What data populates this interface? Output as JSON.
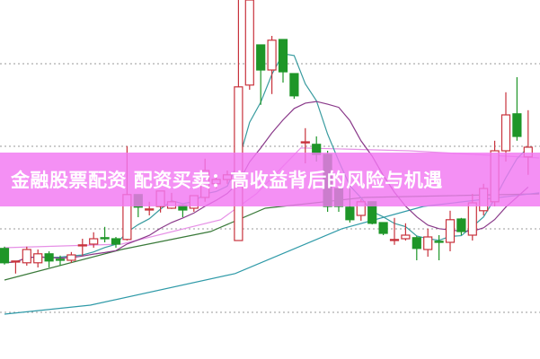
{
  "banner": {
    "title": "金融股票配资 配资买卖：高收益背后的风险与机遇"
  },
  "chart_data": {
    "type": "candlestick",
    "title": "",
    "xlabel": "",
    "ylabel": "",
    "ylim": [
      0,
      100
    ],
    "grid": {
      "horizontal": true,
      "style": "dotted",
      "levels": [
        82.25,
        59.25,
        36.25,
        13
      ]
    },
    "colors": {
      "up": "#c8323c",
      "down": "#1e9628",
      "ma_short": "#3a9ca0",
      "ma_mid": "#8a3a8a",
      "ma_pink": "#e690e6",
      "ma_green": "#3a7a3a",
      "ma_long": "#2f9aa8",
      "banner": "#f278f2"
    },
    "candles": [
      [
        30.8,
        31.3,
        26.3,
        26.8
      ],
      [
        27.2,
        27.3,
        23.8,
        27.3
      ],
      [
        26.8,
        31.3,
        26,
        30.5
      ],
      [
        26.8,
        30.5,
        25.5,
        29.3
      ],
      [
        29.3,
        30,
        25.5,
        27.3
      ],
      [
        27.8,
        28.8,
        26,
        27.5
      ],
      [
        27.5,
        29.8,
        26.8,
        29
      ],
      [
        31.5,
        33.5,
        28.8,
        31.8
      ],
      [
        32,
        35.3,
        31,
        33.5
      ],
      [
        33.8,
        36.8,
        32.5,
        33.5
      ],
      [
        33.5,
        34,
        31,
        32
      ],
      [
        33.3,
        59.3,
        33,
        45.8
      ],
      [
        45.8,
        45.8,
        39.5,
        42.3
      ],
      [
        41.5,
        43.8,
        40,
        41.8
      ],
      [
        42.5,
        46.8,
        40.8,
        46.8
      ],
      [
        42,
        46.3,
        41.8,
        43.8
      ],
      [
        42.8,
        43,
        39.5,
        41.5
      ],
      [
        42,
        45.5,
        41,
        45.5
      ],
      [
        45,
        55.8,
        43.8,
        52.5
      ],
      [
        48.8,
        51.3,
        47.5,
        50
      ],
      [
        50,
        52.5,
        48.8,
        51.3
      ],
      [
        33,
        100,
        33,
        75.8
      ],
      [
        76.3,
        100,
        75,
        100
      ],
      [
        87.5,
        87.5,
        70.8,
        80.5
      ],
      [
        80.5,
        90,
        73.8,
        88.8
      ],
      [
        89,
        89,
        77,
        80
      ],
      [
        79.5,
        79.5,
        72.5,
        73.3
      ],
      [
        60.5,
        64.3,
        54.5,
        60.5
      ],
      [
        59.8,
        62,
        55,
        57
      ],
      [
        57,
        58,
        41,
        42.5
      ],
      [
        47.5,
        47.5,
        41,
        42.5
      ],
      [
        42.3,
        47.5,
        38,
        38.8
      ],
      [
        40,
        44.5,
        38.5,
        43.8
      ],
      [
        43.8,
        43.8,
        37.5,
        37.8
      ],
      [
        38,
        38,
        34.5,
        35
      ],
      [
        33.3,
        39.3,
        31.8,
        33.3
      ],
      [
        33.5,
        37.8,
        33,
        34.5
      ],
      [
        33.8,
        34.3,
        27.5,
        30.8
      ],
      [
        30.5,
        36.3,
        28.5,
        34
      ],
      [
        32.8,
        34.5,
        27.5,
        32.6
      ],
      [
        32.5,
        41.3,
        30,
        38.8
      ],
      [
        39,
        39.3,
        34.5,
        35.5
      ],
      [
        34.5,
        46,
        33,
        43.5
      ],
      [
        41.3,
        48.8,
        40,
        47.5
      ],
      [
        43.8,
        60.8,
        42.5,
        58
      ],
      [
        58,
        74.3,
        55,
        68
      ],
      [
        68.3,
        78.5,
        60.8,
        62
      ],
      [
        56.3,
        69.3,
        51.3,
        59
      ]
    ],
    "candle_format": [
      "open",
      "high",
      "low",
      "close"
    ],
    "overlay_lines": [
      {
        "key": "ma_pink",
        "points": [
          [
            0,
            31
          ],
          [
            10.5,
            32
          ],
          [
            19.4,
            38.8
          ],
          [
            22.6,
            46
          ],
          [
            26.6,
            58.8
          ],
          [
            36.3,
            58
          ],
          [
            48,
            56
          ]
        ]
      },
      {
        "key": "ma_green",
        "points": [
          [
            0,
            22
          ],
          [
            10.5,
            30.5
          ],
          [
            18.5,
            35.5
          ],
          [
            23.4,
            42
          ],
          [
            32.3,
            45
          ],
          [
            48,
            46
          ]
        ]
      },
      {
        "key": "ma_long",
        "points": [
          [
            0,
            12.5
          ],
          [
            7.7,
            15
          ],
          [
            20.7,
            23.8
          ],
          [
            30.3,
            36.3
          ],
          [
            37.6,
            42.5
          ],
          [
            48,
            46.3
          ]
        ]
      }
    ],
    "computed_lines": [
      {
        "key": "ma_short",
        "period": 5
      },
      {
        "key": "ma_mid",
        "period": 10
      }
    ]
  }
}
